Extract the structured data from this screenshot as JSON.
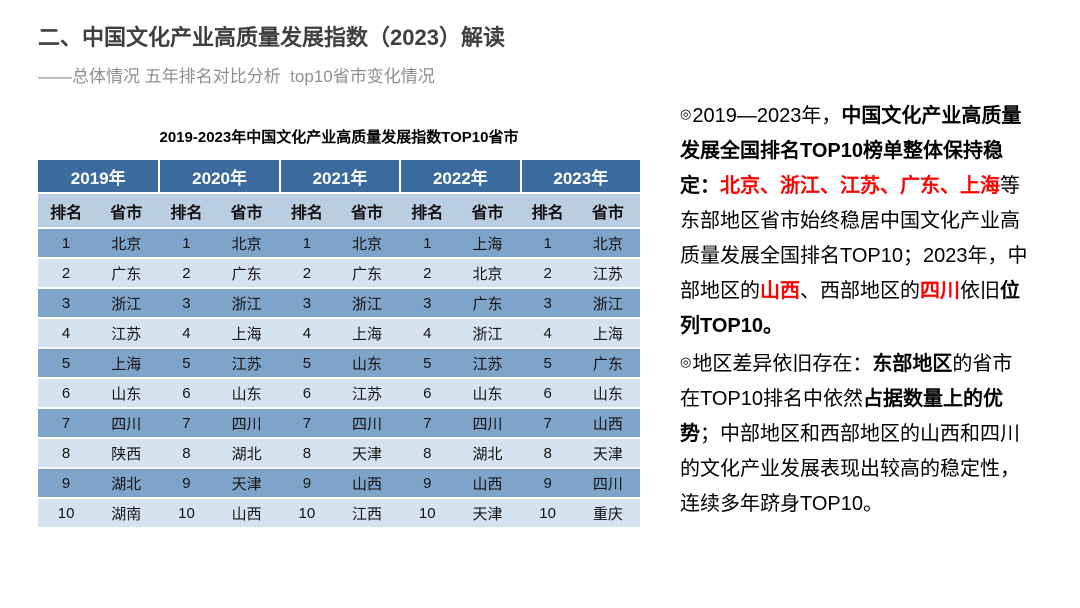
{
  "slide": {
    "title": "二、中国文化产业高质量发展指数（2023）解读",
    "subtitle": "——总体情况 五年排名对比分析  top10省市变化情况"
  },
  "colors": {
    "header_bg": "#3A6B9C",
    "sub_bg": "#B9CDE3",
    "row_odd": "#7FA4C9",
    "row_even": "#D5E2EF",
    "red": "#FF0000"
  },
  "table": {
    "title": "2019-2023年中国文化产业高质量发展指数TOP10省市",
    "year_headers": [
      "2019年",
      "2020年",
      "2021年",
      "2022年",
      "2023年"
    ],
    "sub_headers": [
      "排名",
      "省市"
    ],
    "rows": [
      [
        "1",
        "北京",
        "1",
        "北京",
        "1",
        "北京",
        "1",
        "上海",
        "1",
        "北京"
      ],
      [
        "2",
        "广东",
        "2",
        "广东",
        "2",
        "广东",
        "2",
        "北京",
        "2",
        "江苏"
      ],
      [
        "3",
        "浙江",
        "3",
        "浙江",
        "3",
        "浙江",
        "3",
        "广东",
        "3",
        "浙江"
      ],
      [
        "4",
        "江苏",
        "4",
        "上海",
        "4",
        "上海",
        "4",
        "浙江",
        "4",
        "上海"
      ],
      [
        "5",
        "上海",
        "5",
        "江苏",
        "5",
        "山东",
        "5",
        "江苏",
        "5",
        "广东"
      ],
      [
        "6",
        "山东",
        "6",
        "山东",
        "6",
        "江苏",
        "6",
        "山东",
        "6",
        "山东"
      ],
      [
        "7",
        "四川",
        "7",
        "四川",
        "7",
        "四川",
        "7",
        "四川",
        "7",
        "山西"
      ],
      [
        "8",
        "陕西",
        "8",
        "湖北",
        "8",
        "天津",
        "8",
        "湖北",
        "8",
        "天津"
      ],
      [
        "9",
        "湖北",
        "9",
        "天津",
        "9",
        "山西",
        "9",
        "山西",
        "9",
        "四川"
      ],
      [
        "10",
        "湖南",
        "10",
        "山西",
        "10",
        "江西",
        "10",
        "天津",
        "10",
        "重庆"
      ]
    ]
  },
  "panel": {
    "paragraphs": [
      {
        "segments": [
          {
            "text": "◎",
            "bullet": true
          },
          {
            "text": "2019—2023年，"
          },
          {
            "text": "中国文化产业高质量发展全国排名TOP10榜单整体保持稳定：",
            "bold": true
          },
          {
            "text": "北京、浙江、江苏、广东、上海",
            "bold": true,
            "red": true
          },
          {
            "text": "等东部地区省市始终稳居中国文化产业高质量发展全国排名TOP10；2023年，中部地区的"
          },
          {
            "text": "山西",
            "bold": true,
            "red": true
          },
          {
            "text": "、西部地区的"
          },
          {
            "text": "四川",
            "bold": true,
            "red": true
          },
          {
            "text": "依旧"
          },
          {
            "text": "位列TOP10。",
            "bold": true
          }
        ]
      },
      {
        "segments": [
          {
            "text": "◎",
            "bullet": true
          },
          {
            "text": "地区差异依旧存在："
          },
          {
            "text": "东部地区",
            "bold": true
          },
          {
            "text": "的省市在TOP10排名中依然"
          },
          {
            "text": "占据数量上的优势",
            "bold": true
          },
          {
            "text": "；中部地区和西部地区的山西和四川的文化产业发展表现出较高的稳定性，连续多年跻身TOP10。"
          }
        ]
      }
    ]
  }
}
